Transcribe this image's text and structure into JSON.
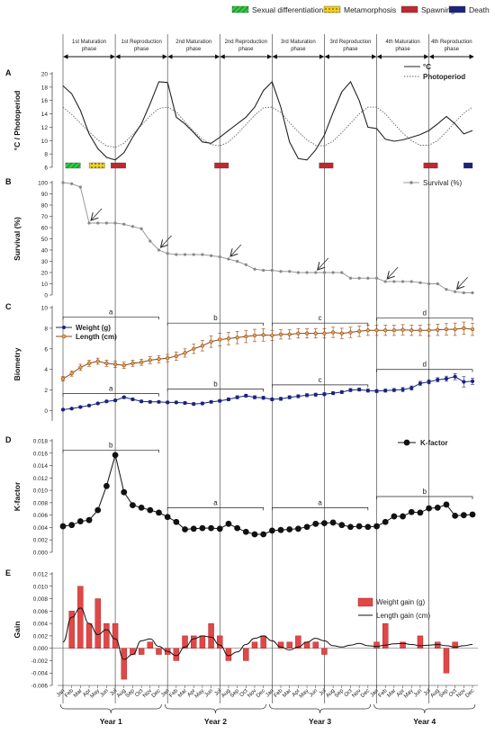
{
  "legend_top": [
    {
      "label": "Sexual differentiation",
      "color": "#2ecc40",
      "pattern": "hatch-green"
    },
    {
      "label": "Metamorphosis",
      "color": "#f2d21b",
      "pattern": "dots-yellow"
    },
    {
      "label": "Spawning",
      "color": "#c0282d",
      "pattern": "solid"
    },
    {
      "label": "Death",
      "color": "#1a237e",
      "pattern": "solid"
    }
  ],
  "phases": [
    {
      "line1": "1st Maturation",
      "line2": "phase"
    },
    {
      "line1": "1st Reproduction",
      "line2": "phase"
    },
    {
      "line1": "2nd Maturation",
      "line2": "phase"
    },
    {
      "line1": "2nd Reproduction",
      "line2": "phase"
    },
    {
      "line1": "3rd Maturation",
      "line2": "phase"
    },
    {
      "line1": "3rd Reproduction",
      "line2": "phase"
    },
    {
      "line1": "4th Maturation",
      "line2": "phase"
    },
    {
      "line1": "4th Reproduction",
      "line2": "phase"
    }
  ],
  "months": [
    "Jan",
    "Feb",
    "Mar",
    "Apr",
    "May",
    "Jun",
    "Jul",
    "Aug",
    "Sep",
    "Oct",
    "Nov",
    "Dec"
  ],
  "years": [
    "Year 1",
    "Year 2",
    "Year 3",
    "Year 4"
  ],
  "chart_data": [
    {
      "panel": "A",
      "type": "line",
      "ylabel": "°C / Photoperiod",
      "ylim": [
        6,
        20
      ],
      "yticks": [
        6,
        8,
        10,
        12,
        14,
        16,
        18,
        20
      ],
      "series": [
        {
          "name": "°C",
          "style": "solid",
          "x": [
            0,
            1,
            2,
            3,
            4,
            5,
            6,
            7,
            8,
            9,
            10,
            11,
            12,
            13,
            14,
            15,
            16,
            17,
            18,
            19,
            20,
            21,
            22,
            23,
            24,
            25,
            26,
            27,
            28,
            29,
            30,
            31,
            32,
            33,
            34,
            35,
            36,
            37,
            38,
            39,
            40,
            41,
            42,
            43,
            44,
            45,
            46,
            47
          ],
          "values": [
            18.2,
            17,
            14.5,
            11,
            8.8,
            7.5,
            7.1,
            8.2,
            10.5,
            12.5,
            15.5,
            18.8,
            18.7,
            13.5,
            12.5,
            11.2,
            9.8,
            9.6,
            10.5,
            11.5,
            12.5,
            13.5,
            15,
            17.5,
            18.8,
            15,
            9.8,
            7.3,
            7.1,
            8.6,
            10.8,
            14.2,
            17.3,
            18.8,
            16,
            12,
            11.8,
            10.2,
            9.9,
            10.1,
            10.5,
            10.9,
            11.5,
            12.5,
            13.6,
            12.5,
            11,
            11.5
          ]
        },
        {
          "name": "Photoperiod",
          "style": "dotted",
          "x": [
            0,
            1,
            2,
            3,
            4,
            5,
            6,
            7,
            8,
            9,
            10,
            11,
            12,
            13,
            14,
            15,
            16,
            17,
            18,
            19,
            20,
            21,
            22,
            23,
            24,
            25,
            26,
            27,
            28,
            29,
            30,
            31,
            32,
            33,
            34,
            35,
            36,
            37,
            38,
            39,
            40,
            41,
            42,
            43,
            44,
            45,
            46,
            47
          ],
          "values": [
            15,
            13.9,
            12.6,
            11.3,
            10.1,
            9.2,
            9,
            9.6,
            10.9,
            12.3,
            13.7,
            14.8,
            15,
            14.3,
            12.8,
            11.4,
            10.2,
            9.4,
            9.2,
            9.8,
            11,
            12.4,
            13.8,
            14.9,
            15,
            14.2,
            12.7,
            11.3,
            10.1,
            9.3,
            9.2,
            9.9,
            11.2,
            12.6,
            14,
            15,
            15,
            14,
            12.5,
            11.1,
            10,
            9.3,
            9.3,
            10,
            11.3,
            12.8,
            14.1,
            15
          ]
        }
      ],
      "bands": [
        {
          "type": "Sexual differentiation",
          "x0": 0.3,
          "x1": 2
        },
        {
          "type": "Metamorphosis",
          "x0": 3,
          "x1": 4.8
        },
        {
          "type": "Spawning",
          "x0": 5.5,
          "x1": 7.2
        },
        {
          "type": "Spawning",
          "x0": 17.4,
          "x1": 19
        },
        {
          "type": "Spawning",
          "x0": 29.4,
          "x1": 31
        },
        {
          "type": "Spawning",
          "x0": 41.4,
          "x1": 43
        },
        {
          "type": "Death",
          "x0": 46,
          "x1": 47
        }
      ]
    },
    {
      "panel": "B",
      "type": "line",
      "ylabel": "Survival (%)",
      "ylim": [
        0,
        100
      ],
      "yticks": [
        0,
        10,
        20,
        30,
        40,
        50,
        60,
        70,
        80,
        90,
        100
      ],
      "series": [
        {
          "name": "Survival (%)",
          "values": [
            100,
            99,
            96,
            64,
            64,
            64,
            64,
            63,
            61,
            59,
            48,
            40,
            37,
            36,
            36,
            36,
            36,
            35,
            34,
            32,
            30,
            27,
            23,
            22,
            22,
            21,
            21,
            20,
            20,
            20,
            20,
            20,
            20,
            15,
            15,
            15,
            15,
            12,
            12,
            12,
            12,
            11,
            10,
            10,
            5,
            3,
            2,
            2
          ]
        }
      ],
      "arrows": [
        3,
        11,
        19,
        29,
        37,
        45
      ]
    },
    {
      "panel": "C",
      "type": "line",
      "ylabel": "Biometry",
      "ylim": [
        -1,
        10
      ],
      "yticks": [
        0,
        2,
        4,
        6,
        8,
        10
      ],
      "series": [
        {
          "name": "Weight (g)",
          "values": [
            0.1,
            0.2,
            0.35,
            0.5,
            0.7,
            0.9,
            1.0,
            1.3,
            1.1,
            0.9,
            0.85,
            0.85,
            0.8,
            0.8,
            0.75,
            0.65,
            0.7,
            0.85,
            0.95,
            1.1,
            1.3,
            1.45,
            1.3,
            1.25,
            1.1,
            1.15,
            1.3,
            1.4,
            1.5,
            1.55,
            1.6,
            1.7,
            1.8,
            2.0,
            2.05,
            1.95,
            1.9,
            1.95,
            2.0,
            2.05,
            2.2,
            2.65,
            2.8,
            3.0,
            3.1,
            3.3,
            2.8,
            2.85
          ],
          "err": [
            0.08,
            0.08,
            0.1,
            0.1,
            0.1,
            0.1,
            0.1,
            0.12,
            0.12,
            0.12,
            0.12,
            0.12,
            0.12,
            0.12,
            0.12,
            0.12,
            0.12,
            0.12,
            0.12,
            0.15,
            0.15,
            0.15,
            0.15,
            0.15,
            0.15,
            0.15,
            0.15,
            0.15,
            0.15,
            0.15,
            0.15,
            0.15,
            0.15,
            0.15,
            0.15,
            0.15,
            0.15,
            0.15,
            0.15,
            0.2,
            0.2,
            0.2,
            0.2,
            0.2,
            0.25,
            0.3,
            0.5,
            0.3
          ]
        },
        {
          "name": "Length (cm)",
          "values": [
            3.1,
            3.6,
            4.2,
            4.6,
            4.8,
            4.6,
            4.5,
            4.4,
            4.6,
            4.7,
            4.9,
            5.0,
            5.1,
            5.3,
            5.6,
            6.0,
            6.3,
            6.7,
            6.9,
            7.0,
            7.1,
            7.2,
            7.3,
            7.35,
            7.3,
            7.4,
            7.4,
            7.5,
            7.5,
            7.5,
            7.5,
            7.6,
            7.5,
            7.6,
            7.7,
            7.8,
            7.8,
            7.8,
            7.8,
            7.85,
            7.8,
            7.8,
            7.8,
            7.85,
            7.9,
            7.9,
            8.0,
            7.9
          ],
          "err": [
            0.2,
            0.25,
            0.3,
            0.3,
            0.3,
            0.3,
            0.3,
            0.3,
            0.3,
            0.3,
            0.35,
            0.35,
            0.35,
            0.4,
            0.4,
            0.45,
            0.5,
            0.55,
            0.6,
            0.6,
            0.6,
            0.6,
            0.6,
            0.6,
            0.5,
            0.45,
            0.45,
            0.45,
            0.45,
            0.45,
            0.45,
            0.5,
            0.5,
            0.5,
            0.5,
            0.5,
            0.5,
            0.5,
            0.5,
            0.5,
            0.5,
            0.5,
            0.55,
            0.55,
            0.55,
            0.6,
            0.6,
            0.6
          ]
        }
      ],
      "brackets": [
        {
          "label": "a",
          "x0": 0,
          "x1": 11,
          "y": 9.1
        },
        {
          "label": "b",
          "x0": 12,
          "x1": 23,
          "y": 8.5
        },
        {
          "label": "c",
          "x0": 24,
          "x1": 35,
          "y": 8.5
        },
        {
          "label": "d",
          "x0": 36,
          "x1": 47,
          "y": 9.0
        },
        {
          "label": "a",
          "x0": 0,
          "x1": 11,
          "y": 1.65
        },
        {
          "label": "b",
          "x0": 12,
          "x1": 23,
          "y": 2.1
        },
        {
          "label": "c",
          "x0": 24,
          "x1": 35,
          "y": 2.5
        },
        {
          "label": "d",
          "x0": 36,
          "x1": 47,
          "y": 4.0
        }
      ]
    },
    {
      "panel": "D",
      "type": "line",
      "ylabel": "K-factor",
      "ylim": [
        0,
        0.018
      ],
      "yticks": [
        0,
        0.002,
        0.004,
        0.006,
        0.008,
        0.01,
        0.012,
        0.014,
        0.016,
        0.018
      ],
      "series": [
        {
          "name": "K-factor",
          "values": [
            0.0042,
            0.0044,
            0.005,
            0.0052,
            0.0068,
            0.0107,
            0.0157,
            0.0097,
            0.0076,
            0.0072,
            0.0068,
            0.0064,
            0.0057,
            0.0049,
            0.0037,
            0.0038,
            0.0039,
            0.0039,
            0.0038,
            0.0046,
            0.0039,
            0.0033,
            0.0029,
            0.0029,
            0.0035,
            0.0036,
            0.0037,
            0.0038,
            0.0041,
            0.0046,
            0.0047,
            0.0048,
            0.0044,
            0.0041,
            0.0042,
            0.0041,
            0.0042,
            0.0049,
            0.0058,
            0.0058,
            0.0065,
            0.0064,
            0.0071,
            0.0072,
            0.0077,
            0.0059,
            0.006,
            0.0061
          ]
        }
      ],
      "brackets": [
        {
          "label": "b",
          "x0": 0,
          "x1": 11,
          "y": 0.0165
        },
        {
          "label": "a",
          "x0": 12,
          "x1": 23,
          "y": 0.0072
        },
        {
          "label": "a",
          "x0": 24,
          "x1": 35,
          "y": 0.0072
        },
        {
          "label": "b",
          "x0": 36,
          "x1": 47,
          "y": 0.009
        }
      ]
    },
    {
      "panel": "E",
      "type": "bar",
      "ylabel": "Gain",
      "ylim": [
        -0.006,
        0.012
      ],
      "yticks": [
        -0.006,
        -0.004,
        -0.002,
        0,
        0.002,
        0.004,
        0.006,
        0.008,
        0.01,
        0.012
      ],
      "series": [
        {
          "name": "Weight gain (g)",
          "type": "bar",
          "values": [
            0,
            0.006,
            0.01,
            0.004,
            0.008,
            0.004,
            0.004,
            -0.005,
            -0.001,
            -0.001,
            0.001,
            -0.001,
            -0.001,
            -0.002,
            0.002,
            0.002,
            0.002,
            0.004,
            0.002,
            -0.002,
            0,
            -0.002,
            0.001,
            0.002,
            0,
            0.001,
            0.001,
            0.002,
            0.001,
            0.001,
            -0.001,
            0,
            0,
            0,
            0,
            0,
            0.001,
            0.004,
            0,
            0.001,
            0,
            0.002,
            0,
            0.001,
            -0.004,
            0.001,
            0,
            0
          ]
        },
        {
          "name": "Length gain (cm)",
          "type": "line",
          "values": [
            0.001,
            0.005,
            0.0065,
            0.004,
            0.0022,
            0.003,
            0.0015,
            -0.0018,
            -0.001,
            0.0012,
            0.0015,
            0.0003,
            -0.0005,
            -0.0012,
            0.0002,
            0.0015,
            0.002,
            0.0018,
            0.0005,
            -0.0012,
            -0.0006,
            0.0006,
            0.0016,
            0.002,
            0.0012,
            0.0002,
            -0.0003,
            0.0002,
            0.001,
            0.0016,
            0.0012,
            0.0004,
            0.0002,
            0.0005,
            0.0008,
            0.0004,
            0.0003,
            0.0005,
            0.0007,
            0.0008,
            0.0006,
            0.0004,
            0.0005,
            0.0006,
            0.0004,
            0.0002,
            0.0004,
            0.0006
          ]
        }
      ]
    }
  ]
}
